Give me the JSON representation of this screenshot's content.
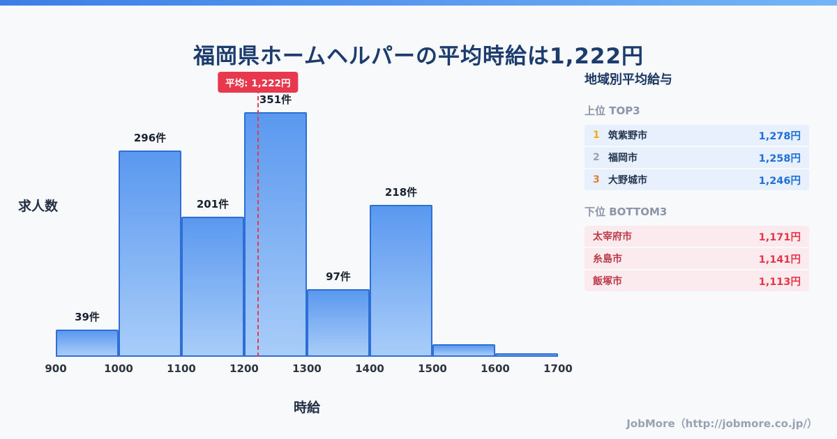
{
  "header": {
    "title": "福岡県ホームヘルパーの平均時給は1,222円"
  },
  "chart_data": {
    "type": "bar",
    "title": "福岡県ホームヘルパーの平均時給は1,222円",
    "xlabel": "時給",
    "ylabel": "求人数",
    "xlim": [
      900,
      1700
    ],
    "ylim": [
      0,
      355
    ],
    "grid": false,
    "legend": false,
    "xticks": [
      900,
      1000,
      1100,
      1200,
      1300,
      1400,
      1500,
      1600,
      1700
    ],
    "average": {
      "value": 1222,
      "label": "平均: 1,222円"
    },
    "bars": [
      {
        "x0": 900,
        "x1": 1000,
        "value": 39,
        "label": "39件"
      },
      {
        "x0": 1000,
        "x1": 1100,
        "value": 296,
        "label": "296件"
      },
      {
        "x0": 1100,
        "x1": 1200,
        "value": 201,
        "label": "201件"
      },
      {
        "x0": 1200,
        "x1": 1300,
        "value": 351,
        "label": "351件"
      },
      {
        "x0": 1300,
        "x1": 1400,
        "value": 97,
        "label": "97件"
      },
      {
        "x0": 1400,
        "x1": 1500,
        "value": 218,
        "label": "218件"
      },
      {
        "x0": 1500,
        "x1": 1600,
        "value": 18,
        "label": ""
      },
      {
        "x0": 1600,
        "x1": 1700,
        "value": 5,
        "label": ""
      }
    ]
  },
  "sidebar": {
    "title": "地域別平均給与",
    "top": {
      "heading": "上位 TOP3",
      "rows": [
        {
          "rank": "1",
          "city": "筑紫野市",
          "value": "1,278円"
        },
        {
          "rank": "2",
          "city": "福岡市",
          "value": "1,258円"
        },
        {
          "rank": "3",
          "city": "大野城市",
          "value": "1,246円"
        }
      ]
    },
    "bottom": {
      "heading": "下位 BOTTOM3",
      "rows": [
        {
          "city": "太宰府市",
          "value": "1,171円"
        },
        {
          "city": "糸島市",
          "value": "1,141円"
        },
        {
          "city": "飯塚市",
          "value": "1,113円"
        }
      ]
    }
  },
  "footer": {
    "credit": "JobMore（http://jobmore.co.jp/）"
  },
  "colors": {
    "title_navy": "#1d3c6e",
    "bar_border_blue": "#2e6fd6",
    "bar_fill_top": "#5a98ef",
    "bar_fill_bottom": "#a9cdf9",
    "average_red": "#e7384e",
    "top3_value_blue": "#1e6fd9",
    "bottom3_value_red": "#e5364a",
    "bottom3_city_red": "#bb3a49",
    "rank1_gold": "#f2a81d",
    "rank2_gray": "#97a2b0",
    "rank3_bronze": "#df7f2e",
    "top3_table_bg": "#e7f0fc",
    "bottom3_table_bg": "#fcebee",
    "page_bg": "#f7f9fb"
  }
}
